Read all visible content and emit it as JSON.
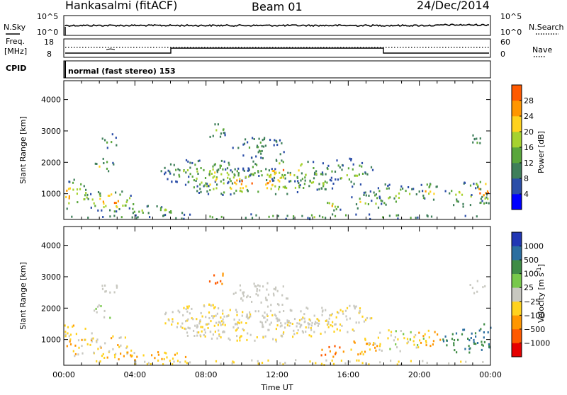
{
  "header": {
    "station": "Hankasalmi (fitACF)",
    "beam": "Beam 01",
    "date": "24/Dec/2014"
  },
  "top_panels": {
    "nsky_label": "N.Sky",
    "nsearch_label": "N.Search",
    "nsky_ticks": [
      "10^5",
      "10^0"
    ],
    "nsearch_ticks": [
      "10^5",
      "10^0"
    ],
    "freq_label_1": "Freq.",
    "freq_label_2": "[MHz]",
    "freq_ticks": [
      "18",
      "8"
    ],
    "nave_ticks": [
      "60",
      "0"
    ],
    "nave_label": "Nave",
    "cpid_label": "CPID",
    "cpid_text": "normal (fast stereo) 153"
  },
  "colors": {
    "power_scale": [
      "#0000ff",
      "#2b4ea8",
      "#3f7f5a",
      "#5aa63c",
      "#a6d22f",
      "#ffd21e",
      "#ff9600",
      "#ff5a00",
      "#e60000"
    ],
    "velocity_scale": [
      "#e60000",
      "#ff5a00",
      "#ff9600",
      "#ffd21e",
      "#c8c8c0",
      "#78c84b",
      "#3f8c46",
      "#2b6ea0",
      "#2137b4"
    ]
  },
  "chart_data": [
    {
      "type": "heatmap",
      "title": "",
      "ylabel": "Slant Range [km]",
      "xlabel": "",
      "x_ticks": [
        "00:00",
        "04:00",
        "08:00",
        "12:00",
        "16:00",
        "20:00",
        "00:00"
      ],
      "xlim_hours": [
        0,
        24
      ],
      "ylim": [
        180,
        4600
      ],
      "y_ticks": [
        1000,
        2000,
        3000,
        4000
      ],
      "colorbar_label": "Power [dB]",
      "colorbar_ticks": [
        4,
        8,
        12,
        16,
        20,
        24,
        28
      ],
      "colorbar_range": [
        0,
        30
      ]
    },
    {
      "type": "heatmap",
      "title": "",
      "ylabel": "Slant Range [km]",
      "xlabel": "Time UT",
      "x_ticks": [
        "00:00",
        "04:00",
        "08:00",
        "12:00",
        "16:00",
        "20:00",
        "00:00"
      ],
      "xlim_hours": [
        0,
        24
      ],
      "ylim": [
        180,
        4600
      ],
      "y_ticks": [
        1000,
        2000,
        3000,
        4000
      ],
      "colorbar_label": "Velocity",
      "colorbar_unit": "[m s",
      "colorbar_unit_exp": "-1",
      "colorbar_unit_end": "]",
      "colorbar_ticks": [
        "1000",
        "500",
        "100",
        "25",
        "−25",
        "−100",
        "−500",
        "−1000"
      ]
    }
  ]
}
